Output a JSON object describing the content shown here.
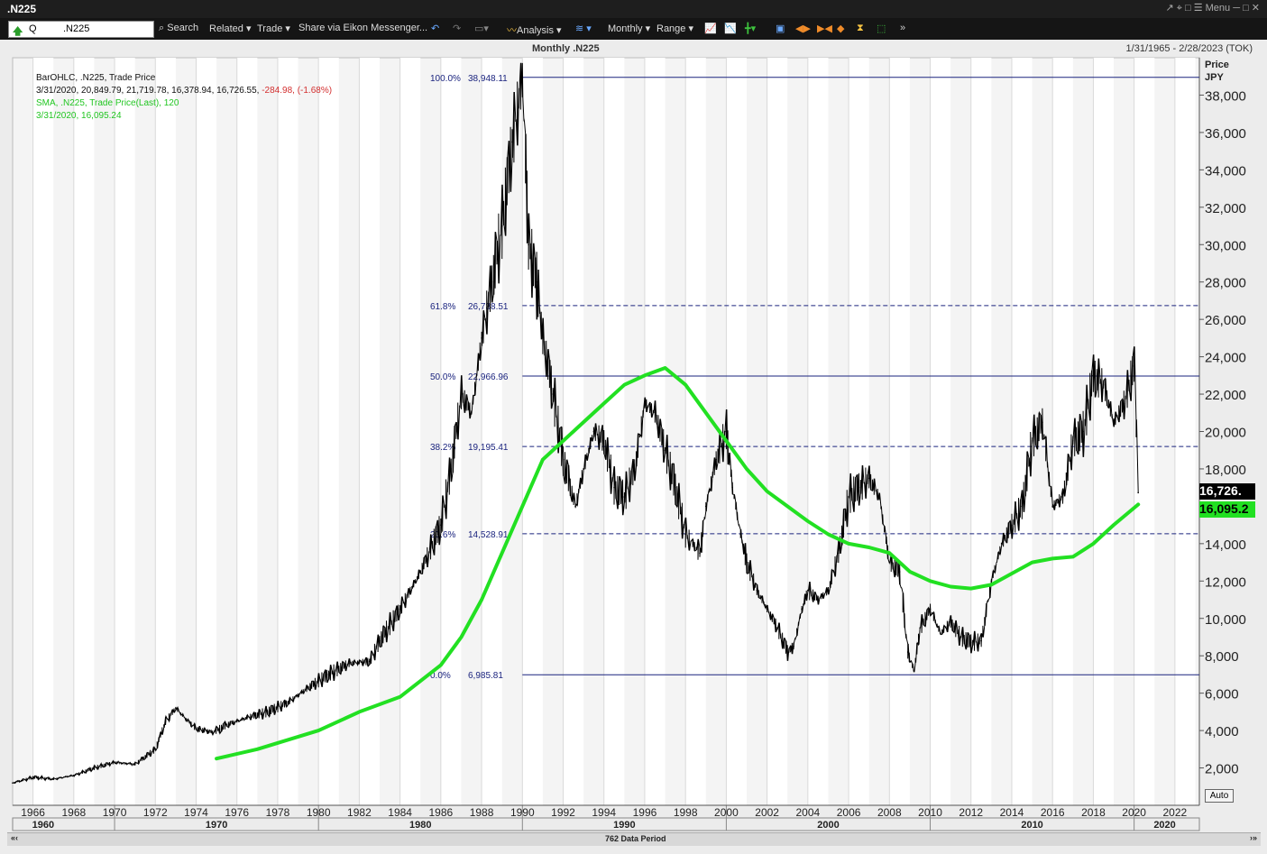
{
  "window": {
    "title": ".N225",
    "menu_label": "Menu"
  },
  "toolbar": {
    "ric_value": ".N225",
    "q_label": "Q",
    "search_label": "Search",
    "related_label": "Related",
    "trade_label": "Trade",
    "share_label": "Share via Eikon Messenger...",
    "analysis_label": "Analysis",
    "period_label": "Monthly",
    "range_label": "Range"
  },
  "header": {
    "title": "Monthly .N225",
    "date_range": "1/31/1965 - 2/28/2023 (TOK)"
  },
  "legend": {
    "line1": "BarOHLC, .N225, Trade Price",
    "line2_values": "3/31/2020, 20,849.79, 21,719.78, 16,378.94, 16,726.55,",
    "line2_change": " -284.98, (-1.68%)",
    "line3": "SMA, .N225, Trade Price(Last),  120",
    "line4": "3/31/2020, 16,095.24"
  },
  "price_axis": {
    "title": "Price",
    "unit": "JPY"
  },
  "last_price_label": "16,726.",
  "sma_price_label": "16,095.2",
  "auto_label": "Auto",
  "footer": {
    "period_count": "762 Data Period",
    "nav_left": "«‹",
    "nav_right": "›»"
  },
  "colors": {
    "ohlc": "#000000",
    "sma": "#22e022",
    "fib": "#1a237e",
    "last_box": "#000000",
    "sma_box": "#22e022"
  },
  "chart_data": {
    "type": "line",
    "title": "Monthly .N225",
    "ylim": [
      0,
      40000
    ],
    "xlim": [
      1965,
      2023.2
    ],
    "yticks": [
      2000,
      4000,
      6000,
      8000,
      10000,
      12000,
      14000,
      16000,
      18000,
      20000,
      22000,
      24000,
      26000,
      28000,
      30000,
      32000,
      34000,
      36000,
      38000
    ],
    "ytick_labels": [
      "2,000",
      "4,000",
      "6,000",
      "8,000",
      "10,000",
      "12,000",
      "14,000",
      "16,000",
      "18,000",
      "20,000",
      "22,000",
      "24,000",
      "26,000",
      "28,000",
      "30,000",
      "32,000",
      "34,000",
      "36,000",
      "38,000"
    ],
    "xticks": [
      1966,
      1968,
      1970,
      1972,
      1974,
      1976,
      1978,
      1980,
      1982,
      1984,
      1986,
      1988,
      1990,
      1992,
      1994,
      1996,
      1998,
      2000,
      2002,
      2004,
      2006,
      2008,
      2010,
      2012,
      2014,
      2016,
      2018,
      2020,
      2022
    ],
    "decades": [
      {
        "label": "1960",
        "x": 1966.5
      },
      {
        "label": "1970",
        "x": 1975
      },
      {
        "label": "1980",
        "x": 1985
      },
      {
        "label": "1990",
        "x": 1995
      },
      {
        "label": "2000",
        "x": 2005
      },
      {
        "label": "2010",
        "x": 2015
      },
      {
        "label": "2020",
        "x": 2021.5
      }
    ],
    "fibonacci": [
      {
        "pct": "100.0%",
        "value": "38,948.11",
        "y": 38948.11,
        "style": "solid"
      },
      {
        "pct": "61.8%",
        "value": "26,738.51",
        "y": 26738.51,
        "style": "dashed"
      },
      {
        "pct": "50.0%",
        "value": "22,966.96",
        "y": 22966.96,
        "style": "solid"
      },
      {
        "pct": "38.2%",
        "value": "19,195.41",
        "y": 19195.41,
        "style": "dashed"
      },
      {
        "pct": "23.6%",
        "value": "14,528.91",
        "y": 14528.91,
        "style": "dashed"
      },
      {
        "pct": "0.0%",
        "value": "6,985.81",
        "y": 6985.81,
        "style": "solid"
      }
    ],
    "fib_start_x": 1990.0,
    "series": [
      {
        "name": "BarOHLC, .N225, Trade Price",
        "x": [
          1965.0,
          1966.0,
          1967.0,
          1968.0,
          1969.0,
          1970.0,
          1971.0,
          1972.0,
          1972.5,
          1973.0,
          1973.5,
          1974.0,
          1974.8,
          1975.5,
          1976.5,
          1977.5,
          1978.5,
          1979.5,
          1980.5,
          1981.5,
          1982.5,
          1983.0,
          1984.0,
          1985.0,
          1986.0,
          1986.5,
          1987.0,
          1987.5,
          1988.0,
          1988.5,
          1989.0,
          1989.5,
          1990.0,
          1990.3,
          1990.7,
          1991.0,
          1991.5,
          1992.0,
          1992.6,
          1993.0,
          1993.5,
          1994.0,
          1994.5,
          1995.0,
          1995.5,
          1996.0,
          1996.5,
          1997.0,
          1997.5,
          1998.0,
          1998.7,
          1999.0,
          1999.5,
          2000.0,
          2000.3,
          2000.7,
          2001.0,
          2001.5,
          2002.0,
          2002.5,
          2003.0,
          2003.3,
          2003.7,
          2004.0,
          2004.5,
          2005.0,
          2005.5,
          2006.0,
          2006.5,
          2007.0,
          2007.5,
          2008.0,
          2008.5,
          2008.9,
          2009.2,
          2009.5,
          2010.0,
          2010.5,
          2011.0,
          2011.5,
          2012.0,
          2012.5,
          2013.0,
          2013.5,
          2014.0,
          2014.5,
          2015.0,
          2015.5,
          2016.0,
          2016.5,
          2017.0,
          2017.5,
          2018.0,
          2018.5,
          2019.0,
          2019.5,
          2020.0,
          2020.2
        ],
        "values": [
          1200,
          1500,
          1400,
          1600,
          2000,
          2300,
          2200,
          3000,
          4500,
          5200,
          4600,
          4100,
          3900,
          4300,
          4700,
          5000,
          5500,
          6300,
          7000,
          7600,
          7700,
          8800,
          10500,
          12500,
          15000,
          18000,
          22000,
          21000,
          25000,
          28000,
          31000,
          35500,
          38900,
          30000,
          28000,
          25000,
          22000,
          18500,
          16000,
          18000,
          20000,
          19500,
          17000,
          16500,
          18000,
          21500,
          21000,
          19000,
          17000,
          14500,
          13500,
          16000,
          18500,
          20000,
          17000,
          14500,
          13000,
          11500,
          10500,
          9500,
          8200,
          8500,
          10500,
          11500,
          11000,
          11500,
          13500,
          16500,
          17000,
          17500,
          16500,
          13000,
          12500,
          8200,
          7200,
          9500,
          10500,
          9200,
          9800,
          9000,
          8700,
          8800,
          12000,
          14000,
          15000,
          16000,
          19500,
          20500,
          16000,
          16500,
          19500,
          20000,
          23000,
          22500,
          20500,
          21500,
          23500,
          16726
        ]
      },
      {
        "name": "SMA, .N225, Trade Price(Last), 120",
        "x": [
          1975.0,
          1977.0,
          1980.0,
          1982.0,
          1984.0,
          1986.0,
          1987.0,
          1988.0,
          1989.0,
          1990.0,
          1991.0,
          1992.0,
          1993.0,
          1994.0,
          1995.0,
          1996.0,
          1997.0,
          1998.0,
          1999.0,
          2000.0,
          2001.0,
          2002.0,
          2003.0,
          2004.0,
          2005.0,
          2006.0,
          2007.0,
          2008.0,
          2009.0,
          2010.0,
          2011.0,
          2012.0,
          2013.0,
          2014.0,
          2015.0,
          2016.0,
          2017.0,
          2018.0,
          2019.0,
          2020.2
        ],
        "values": [
          2500,
          3000,
          4000,
          5000,
          5800,
          7500,
          9000,
          11000,
          13500,
          16000,
          18500,
          19500,
          20500,
          21500,
          22500,
          23000,
          23400,
          22500,
          21000,
          19500,
          18000,
          16800,
          16000,
          15200,
          14500,
          14000,
          13800,
          13500,
          12500,
          12000,
          11700,
          11600,
          11800,
          12400,
          13000,
          13200,
          13300,
          14000,
          15000,
          16095
        ]
      }
    ]
  }
}
